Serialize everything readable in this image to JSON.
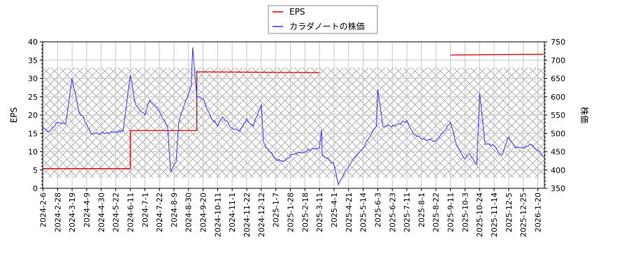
{
  "chart_data": {
    "type": "line",
    "title": "",
    "legend": {
      "position": "top-center",
      "entries": [
        {
          "label": "EPS",
          "color": "#dd0000"
        },
        {
          "label": "カラダノートの株価",
          "color": "#3333ff"
        }
      ]
    },
    "xlabel": "",
    "ylabel_left": "EPS",
    "ylabel_right": "株価",
    "ylim_left": [
      0,
      40
    ],
    "ylim_right": [
      350,
      750
    ],
    "yticks_left": [
      0,
      5,
      10,
      15,
      20,
      25,
      30,
      35,
      40
    ],
    "yticks_right": [
      350,
      400,
      450,
      500,
      550,
      600,
      650,
      700,
      750
    ],
    "x_tick_labels": [
      "2024-2-6",
      "2024-2-28",
      "2024-3-19",
      "2024-4-9",
      "2024-4-30",
      "2024-5-22",
      "2024-6-11",
      "2024-7-1",
      "2024-7-22",
      "2024-8-9",
      "2024-8-30",
      "2024-9-20",
      "2024-10-11",
      "2024-11-1",
      "2024-11-22",
      "2024-12-12",
      "2025-1-7",
      "2025-1-28",
      "2025-2-18",
      "2025-3-11",
      "2025-4-1",
      "2025-4-21",
      "2025-5-14",
      "2025-6-3",
      "2025-6-23",
      "2025-7-11",
      "2025-8-1",
      "2025-8-22",
      "2025-9-11",
      "2025-10-3",
      "2025-10-24",
      "2025-11-14",
      "2025-12-5",
      "2025-12-25",
      "2026-1-20"
    ],
    "grid": true,
    "hatched_band_price_range": [
      380,
      680
    ],
    "series": [
      {
        "name": "EPS",
        "axis": "left",
        "color": "#dd0000",
        "step": true,
        "points": [
          {
            "x": "2024-2-6",
            "y": 5.4
          },
          {
            "x": "2024-6-11",
            "y": 5.4
          },
          {
            "x": "2024-6-11",
            "y": 15.8
          },
          {
            "x": "2024-9-11",
            "y": 15.8
          },
          {
            "x": "2024-9-11",
            "y": 31.8
          },
          {
            "x": "2025-3-11",
            "y": 31.6
          },
          {
            "x": "2025-9-11",
            "y": 36.4
          },
          {
            "x": "2026-1-30",
            "y": 36.6
          }
        ]
      },
      {
        "name": "カラダノートの株価",
        "axis": "right",
        "color": "#3333ff",
        "points": [
          {
            "x": "2024-2-6",
            "y": 515
          },
          {
            "x": "2024-2-15",
            "y": 505
          },
          {
            "x": "2024-2-28",
            "y": 530
          },
          {
            "x": "2024-3-10",
            "y": 525
          },
          {
            "x": "2024-3-19",
            "y": 650
          },
          {
            "x": "2024-3-29",
            "y": 560
          },
          {
            "x": "2024-4-9",
            "y": 525
          },
          {
            "x": "2024-4-15",
            "y": 500
          },
          {
            "x": "2024-4-30",
            "y": 500
          },
          {
            "x": "2024-5-22",
            "y": 505
          },
          {
            "x": "2024-6-1",
            "y": 505
          },
          {
            "x": "2024-6-11",
            "y": 660
          },
          {
            "x": "2024-6-18",
            "y": 580
          },
          {
            "x": "2024-7-1",
            "y": 550
          },
          {
            "x": "2024-7-8",
            "y": 590
          },
          {
            "x": "2024-7-22",
            "y": 560
          },
          {
            "x": "2024-8-1",
            "y": 520
          },
          {
            "x": "2024-8-5",
            "y": 395
          },
          {
            "x": "2024-8-12",
            "y": 420
          },
          {
            "x": "2024-8-16",
            "y": 530
          },
          {
            "x": "2024-8-26",
            "y": 590
          },
          {
            "x": "2024-9-3",
            "y": 630
          },
          {
            "x": "2024-9-5",
            "y": 735
          },
          {
            "x": "2024-9-11",
            "y": 600
          },
          {
            "x": "2024-9-20",
            "y": 595
          },
          {
            "x": "2024-10-1",
            "y": 545
          },
          {
            "x": "2024-10-11",
            "y": 520
          },
          {
            "x": "2024-10-18",
            "y": 545
          },
          {
            "x": "2024-11-1",
            "y": 515
          },
          {
            "x": "2024-11-12",
            "y": 505
          },
          {
            "x": "2024-11-22",
            "y": 540
          },
          {
            "x": "2024-12-1",
            "y": 520
          },
          {
            "x": "2024-12-12",
            "y": 580
          },
          {
            "x": "2024-12-16",
            "y": 475
          },
          {
            "x": "2025-1-7",
            "y": 430
          },
          {
            "x": "2025-1-20",
            "y": 425
          },
          {
            "x": "2025-1-28",
            "y": 440
          },
          {
            "x": "2025-2-18",
            "y": 450
          },
          {
            "x": "2025-3-1",
            "y": 460
          },
          {
            "x": "2025-3-11",
            "y": 460
          },
          {
            "x": "2025-3-14",
            "y": 510
          },
          {
            "x": "2025-3-15",
            "y": 440
          },
          {
            "x": "2025-3-31",
            "y": 420
          },
          {
            "x": "2025-4-7",
            "y": 360
          },
          {
            "x": "2025-4-21",
            "y": 410
          },
          {
            "x": "2025-5-14",
            "y": 460
          },
          {
            "x": "2025-6-1",
            "y": 520
          },
          {
            "x": "2025-6-3",
            "y": 620
          },
          {
            "x": "2025-6-10",
            "y": 520
          },
          {
            "x": "2025-6-23",
            "y": 520
          },
          {
            "x": "2025-7-11",
            "y": 535
          },
          {
            "x": "2025-7-20",
            "y": 500
          },
          {
            "x": "2025-8-1",
            "y": 485
          },
          {
            "x": "2025-8-22",
            "y": 480
          },
          {
            "x": "2025-9-11",
            "y": 530
          },
          {
            "x": "2025-9-20",
            "y": 470
          },
          {
            "x": "2025-10-3",
            "y": 430
          },
          {
            "x": "2025-10-10",
            "y": 445
          },
          {
            "x": "2025-10-20",
            "y": 415
          },
          {
            "x": "2025-10-24",
            "y": 610
          },
          {
            "x": "2025-11-1",
            "y": 470
          },
          {
            "x": "2025-11-14",
            "y": 465
          },
          {
            "x": "2025-11-25",
            "y": 440
          },
          {
            "x": "2025-12-5",
            "y": 490
          },
          {
            "x": "2025-12-15",
            "y": 460
          },
          {
            "x": "2025-12-25",
            "y": 460
          },
          {
            "x": "2026-1-5",
            "y": 470
          },
          {
            "x": "2026-1-20",
            "y": 455
          },
          {
            "x": "2026-1-30",
            "y": 438
          }
        ]
      }
    ]
  }
}
